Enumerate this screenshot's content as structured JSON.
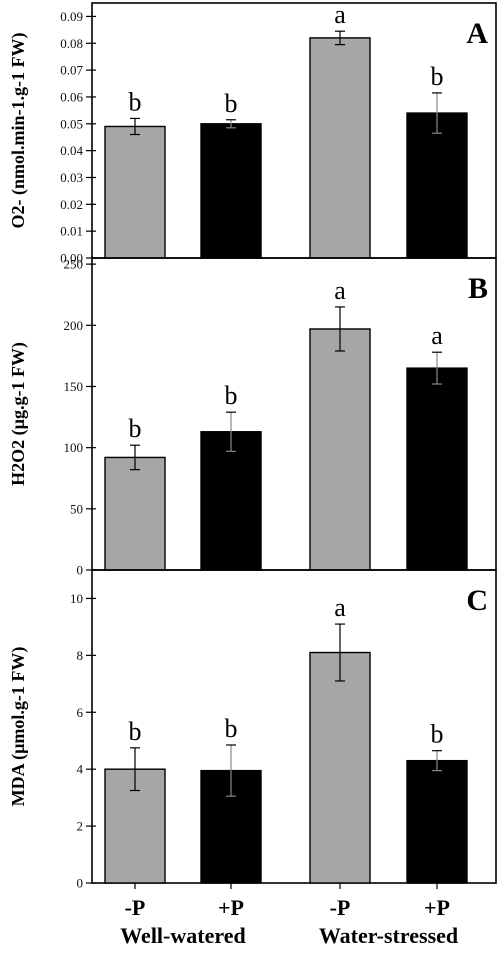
{
  "chart_data": [
    {
      "type": "bar",
      "panel_label": "A",
      "ylabel": "O2- (nmol.min-1.g-1 FW)",
      "ylim": [
        0,
        0.095
      ],
      "yticks": [
        0.0,
        0.01,
        0.02,
        0.03,
        0.04,
        0.05,
        0.06,
        0.07,
        0.08,
        0.09
      ],
      "ytick_labels": [
        "0.00",
        "0.01",
        "0.02",
        "0.03",
        "0.04",
        "0.05",
        "0.06",
        "0.07",
        "0.08",
        "0.09"
      ],
      "values": [
        0.049,
        0.05,
        0.082,
        0.054
      ],
      "errors": [
        0.003,
        0.0015,
        0.0025,
        0.0075
      ],
      "letters": [
        "b",
        "b",
        "a",
        "b"
      ]
    },
    {
      "type": "bar",
      "panel_label": "B",
      "ylabel": "H2O2 (µg.g-1 FW)",
      "ylim": [
        0,
        255
      ],
      "yticks": [
        0,
        50,
        100,
        150,
        200,
        250
      ],
      "ytick_labels": [
        "0",
        "50",
        "100",
        "150",
        "200",
        "250"
      ],
      "values": [
        92,
        113,
        197,
        165
      ],
      "errors": [
        10,
        16,
        18,
        13
      ],
      "letters": [
        "b",
        "b",
        "a",
        "a"
      ]
    },
    {
      "type": "bar",
      "panel_label": "C",
      "ylabel": "MDA (µmol.g-1 FW)",
      "ylim": [
        0,
        11
      ],
      "yticks": [
        0,
        2,
        4,
        6,
        8,
        10
      ],
      "ytick_labels": [
        "0",
        "2",
        "4",
        "6",
        "8",
        "10"
      ],
      "values": [
        4.0,
        3.95,
        8.1,
        4.3
      ],
      "errors": [
        0.75,
        0.9,
        1.0,
        0.35
      ],
      "letters": [
        "b",
        "b",
        "a",
        "b"
      ]
    }
  ],
  "categories": [
    "-P",
    "+P",
    "-P",
    "+P"
  ],
  "groups": [
    "Well-watered",
    "Water-stressed"
  ],
  "bar_colors": [
    "#a6a6a6",
    "#000000",
    "#a6a6a6",
    "#000000"
  ],
  "axis_color": "#000000"
}
